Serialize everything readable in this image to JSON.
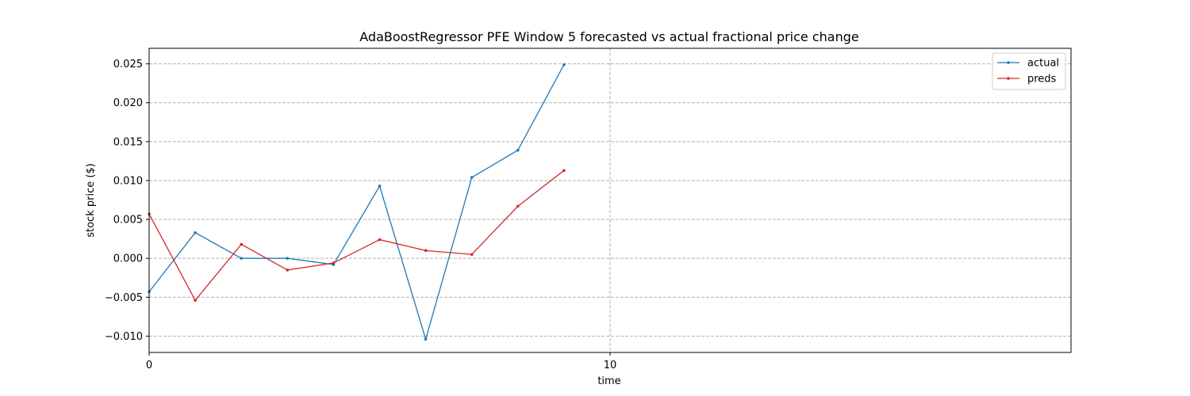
{
  "chart_data": {
    "type": "line",
    "title": "AdaBoostRegressor PFE Window 5 forecasted vs actual fractional price change",
    "xlabel": "time",
    "ylabel": "stock price ($)",
    "xlim": [
      0,
      20
    ],
    "ylim": [
      -0.0121,
      0.027
    ],
    "x_ticks": [
      0,
      10
    ],
    "y_ticks": [
      -0.01,
      -0.005,
      0.0,
      0.005,
      0.01,
      0.015,
      0.02,
      0.025
    ],
    "y_tick_labels": [
      "−0.010",
      "−0.005",
      "0.000",
      "0.005",
      "0.010",
      "0.015",
      "0.020",
      "0.025"
    ],
    "grid": true,
    "legend_position": "top-right",
    "x": [
      0,
      1,
      2,
      3,
      4,
      5,
      6,
      7,
      8,
      9
    ],
    "series": [
      {
        "name": "actual",
        "color": "#1f77b4",
        "values": [
          -0.0043,
          0.0033,
          0.0,
          0.0,
          -0.0008,
          0.0093,
          -0.0104,
          0.0104,
          0.0139,
          0.0249
        ]
      },
      {
        "name": "preds",
        "color": "#d62728",
        "values": [
          0.0057,
          -0.0054,
          0.0018,
          -0.0015,
          -0.0006,
          0.0024,
          0.001,
          0.0005,
          0.0067,
          0.0113
        ]
      }
    ]
  }
}
